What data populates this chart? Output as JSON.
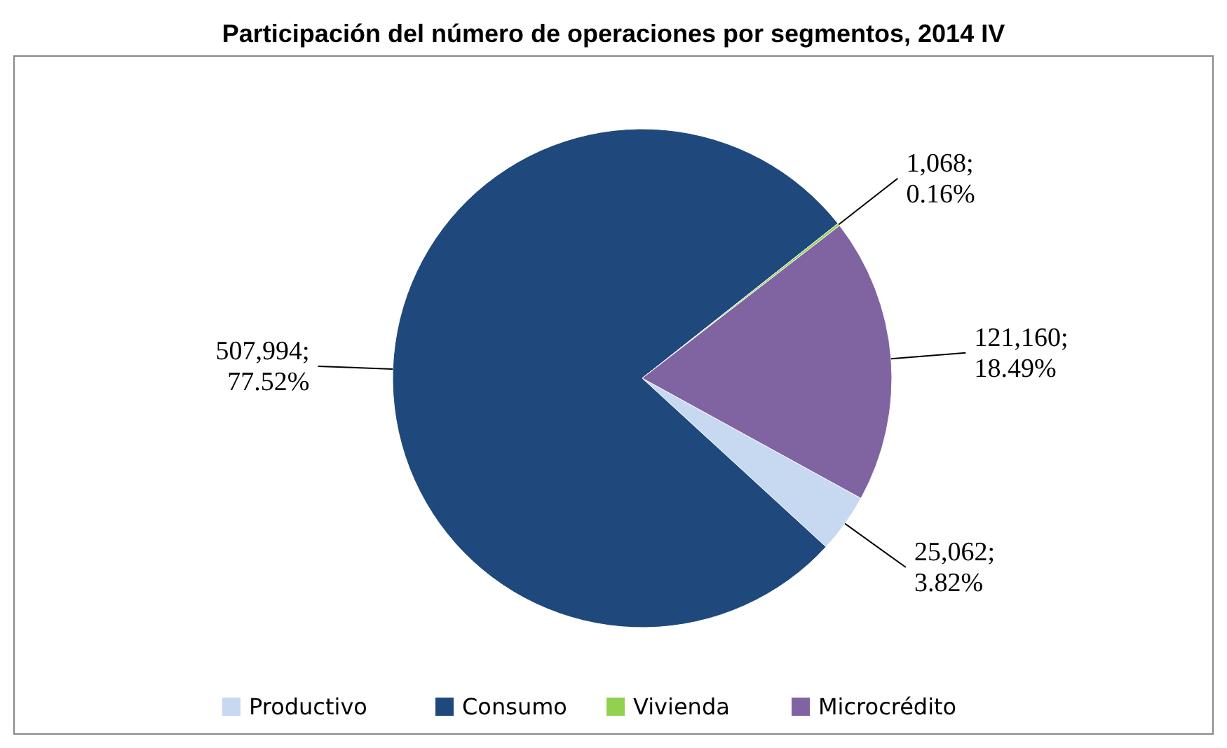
{
  "chart_data": {
    "type": "pie",
    "title": "Participación del número de operaciones por segmentos, 2014 IV",
    "categories": [
      "Productivo",
      "Consumo",
      "Vivienda",
      "Microcrédito"
    ],
    "values": [
      25062,
      507994,
      1068,
      121160
    ],
    "colors": [
      "#c6d9f1",
      "#1f497d",
      "#92d050",
      "#8064a2"
    ],
    "value_labels": [
      "25,062;\n3.82%",
      "507,994;\n77.52%",
      "1,068;\n0.16%",
      "121,160;\n18.49%"
    ],
    "legend": "bottom"
  }
}
